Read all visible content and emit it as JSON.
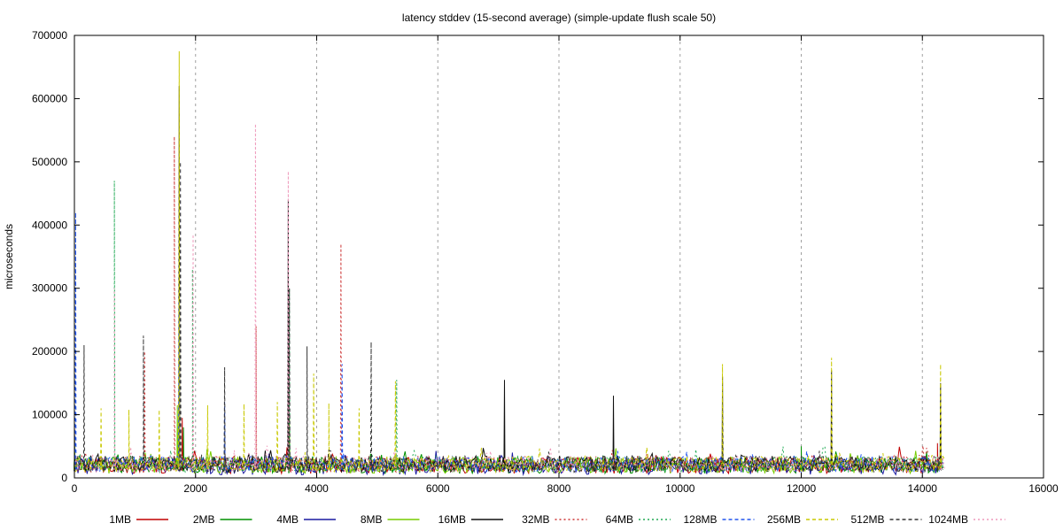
{
  "chart_data": {
    "type": "line",
    "title": "latency stddev (15-second average) (simple-update flush scale 50)",
    "xlabel": "",
    "ylabel": "microseconds",
    "xlim": [
      0,
      16000
    ],
    "ylim": [
      0,
      700000
    ],
    "x_ticks": [
      0,
      2000,
      4000,
      6000,
      8000,
      10000,
      12000,
      14000,
      16000
    ],
    "y_ticks": [
      0,
      100000,
      200000,
      300000,
      400000,
      500000,
      600000,
      700000
    ],
    "vertical_grid": true,
    "horizontal_grid": false,
    "legend_position": "bottom",
    "series": [
      {
        "name": "1MB",
        "color": "#c00000",
        "dash": "solid",
        "end_x": 14300,
        "baseline": 20000,
        "spikes": [
          [
            0,
            90000
          ],
          [
            1780,
            95000
          ],
          [
            3550,
            60000
          ],
          [
            14250,
            55000
          ]
        ]
      },
      {
        "name": "2MB",
        "color": "#009000",
        "dash": "solid",
        "end_x": 14350,
        "baseline": 20000,
        "spikes": [
          [
            0,
            70000
          ],
          [
            1800,
            80000
          ],
          [
            12000,
            50000
          ]
        ]
      },
      {
        "name": "4MB",
        "color": "#1a1aa0",
        "dash": "solid",
        "end_x": 14300,
        "baseline": 18000,
        "spikes": [
          [
            0,
            60000
          ],
          [
            1730,
            150000
          ],
          [
            8900,
            45000
          ]
        ]
      },
      {
        "name": "8MB",
        "color": "#77cc00",
        "dash": "solid",
        "end_x": 14300,
        "baseline": 20000,
        "spikes": [
          [
            0,
            75000
          ],
          [
            1700,
            115000
          ],
          [
            3550,
            95000
          ]
        ]
      },
      {
        "name": "16MB",
        "color": "#111111",
        "dash": "solid",
        "end_x": 14320,
        "baseline": 22000,
        "spikes": [
          [
            1730,
            620000
          ],
          [
            3530,
            440000
          ],
          [
            7100,
            155000
          ],
          [
            8900,
            130000
          ],
          [
            10700,
            160000
          ],
          [
            12500,
            170000
          ],
          [
            14300,
            150000
          ]
        ]
      },
      {
        "name": "32MB",
        "color": "#cc3333",
        "dash": "dotted",
        "end_x": 14350,
        "baseline": 22000,
        "spikes": [
          [
            1650,
            540000
          ],
          [
            3000,
            240000
          ],
          [
            4400,
            370000
          ],
          [
            1160,
            200000
          ]
        ]
      },
      {
        "name": "64MB",
        "color": "#22aa55",
        "dash": "dotted",
        "end_x": 14350,
        "baseline": 22000,
        "spikes": [
          [
            660,
            470000
          ],
          [
            1950,
            330000
          ],
          [
            3550,
            300000
          ],
          [
            5320,
            155000
          ]
        ]
      },
      {
        "name": "128MB",
        "color": "#2255ee",
        "dash": "dashed",
        "end_x": 14350,
        "baseline": 22000,
        "spikes": [
          [
            20,
            420000
          ],
          [
            1730,
            280000
          ],
          [
            2480,
            120000
          ],
          [
            4420,
            180000
          ]
        ]
      },
      {
        "name": "256MB",
        "color": "#c8c800",
        "dash": "dashed",
        "end_x": 14380,
        "baseline": 22000,
        "spikes": [
          [
            1730,
            675000
          ],
          [
            440,
            110000
          ],
          [
            900,
            108000
          ],
          [
            1400,
            108000
          ],
          [
            2200,
            115000
          ],
          [
            2800,
            117000
          ],
          [
            3350,
            120000
          ],
          [
            3950,
            165000
          ],
          [
            4200,
            118000
          ],
          [
            4700,
            110000
          ],
          [
            5300,
            153000
          ],
          [
            10700,
            180000
          ],
          [
            12500,
            190000
          ],
          [
            14300,
            180000
          ]
        ]
      },
      {
        "name": "512MB",
        "color": "#333333",
        "dash": "dashed",
        "end_x": 14380,
        "baseline": 22000,
        "spikes": [
          [
            160,
            210000
          ],
          [
            1140,
            225000
          ],
          [
            1750,
            500000
          ],
          [
            2480,
            175000
          ],
          [
            3840,
            208000
          ],
          [
            4900,
            215000
          ],
          [
            3550,
            300000
          ]
        ]
      },
      {
        "name": "1024MB",
        "color": "#ee99bb",
        "dash": "dotted",
        "end_x": 14380,
        "baseline": 22000,
        "spikes": [
          [
            2990,
            560000
          ],
          [
            3530,
            485000
          ],
          [
            1960,
            385000
          ],
          [
            660,
            300000
          ]
        ]
      }
    ]
  }
}
